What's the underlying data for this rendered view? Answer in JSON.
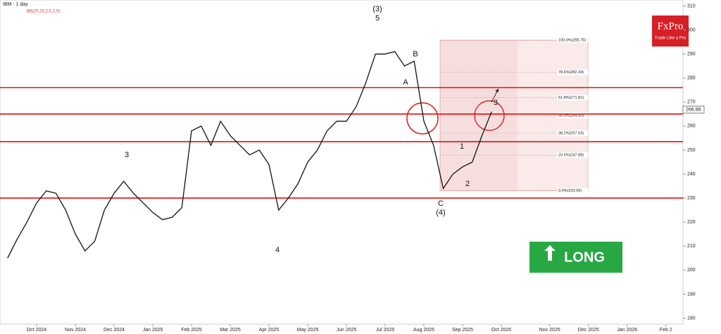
{
  "chart_data": {
    "type": "line",
    "title": "IBM - 1 day",
    "subtitle": "BB(20,20,2,0,2,0)",
    "brand": "FxPro",
    "tagline": "Trade Like a Pro",
    "signal": "LONG",
    "color": "#111111",
    "categories": [
      null,
      null,
      null,
      null,
      "Oct 2024",
      null,
      null,
      null,
      "Nov 2024",
      null,
      null,
      null,
      "Dec 2024",
      null,
      null,
      null,
      "Jan 2025",
      null,
      null,
      null,
      "Feb 2025",
      null,
      null,
      null,
      "Mar 2025",
      null,
      null,
      null,
      "Apr 2025",
      null,
      null,
      null,
      "May 2025",
      null,
      null,
      null,
      "Jun 2025",
      null,
      null,
      null,
      "Jul 2025",
      null,
      null,
      null,
      "Aug 2025",
      null,
      null,
      null,
      "Sep 2025",
      null,
      null,
      null,
      "Oct 2025",
      null,
      null,
      null,
      null,
      "Nov 2025",
      null,
      null,
      null,
      "Dec 2025",
      null,
      null,
      null,
      "Jan 2026",
      null,
      null,
      null,
      "Feb 2"
    ],
    "values": [
      null,
      205,
      213,
      220,
      228,
      233,
      232,
      225,
      215,
      208,
      212,
      225,
      232,
      237,
      232,
      228,
      224,
      221,
      222,
      226,
      258,
      260,
      252,
      262,
      256,
      252,
      248,
      250,
      244,
      225,
      230,
      236,
      245,
      250,
      258,
      262,
      262,
      268,
      278,
      290,
      290,
      291,
      285,
      287,
      262,
      252,
      234,
      240,
      243,
      245,
      256,
      266,
      null,
      null,
      null,
      null,
      null,
      null,
      null,
      null,
      null,
      null,
      null,
      null,
      null,
      null,
      null,
      null,
      null,
      null
    ],
    "ylim": [
      177.5,
      312.5
    ],
    "yticks": [
      180,
      190,
      200,
      210,
      220,
      230,
      240,
      250,
      260,
      270,
      280,
      290,
      300,
      310
    ],
    "levels": [
      276,
      265,
      253.5,
      230
    ],
    "last_price": {
      "value": 266.88,
      "label": "266.88"
    },
    "fib_levels": [
      {
        "value": 295.75,
        "label": "100.0%(295.75)"
      },
      {
        "value": 282.34,
        "label": "78.6%(282.34)"
      },
      {
        "value": 271.81,
        "label": "61.8%(271.81)"
      },
      {
        "value": 264.42,
        "label": "50.0%(264.42)"
      },
      {
        "value": 257.03,
        "label": "38.2%(257.03)"
      },
      {
        "value": 247.88,
        "label": "23.6%(247.88)"
      },
      {
        "value": 233.09,
        "label": "0.0%(233.09)"
      }
    ],
    "annotations": [
      "(3)",
      "5",
      "B",
      "A",
      "C",
      "(4)",
      "3",
      "4",
      "1",
      "2",
      "3"
    ]
  }
}
